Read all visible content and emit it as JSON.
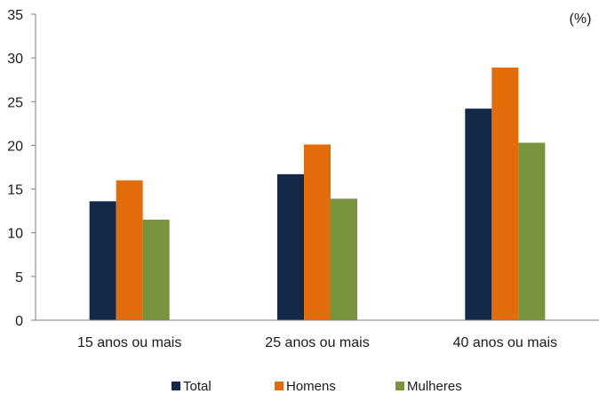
{
  "chart_data": {
    "type": "bar",
    "title": "",
    "unit_label": "(%)",
    "xlabel": "",
    "ylabel": "",
    "ylim": [
      0,
      35
    ],
    "yticks": [
      0,
      5,
      10,
      15,
      20,
      25,
      30,
      35
    ],
    "categories": [
      "15 anos ou mais",
      "25 anos ou mais",
      "40 anos ou mais"
    ],
    "series": [
      {
        "name": "Total",
        "color": "#13294a",
        "values": [
          13.6,
          16.7,
          24.2
        ]
      },
      {
        "name": "Homens",
        "color": "#e36c0a",
        "values": [
          16.0,
          20.1,
          28.9
        ]
      },
      {
        "name": "Mulheres",
        "color": "#77933c",
        "values": [
          11.5,
          13.9,
          20.3
        ]
      }
    ],
    "grid": false,
    "legend_position": "bottom"
  }
}
